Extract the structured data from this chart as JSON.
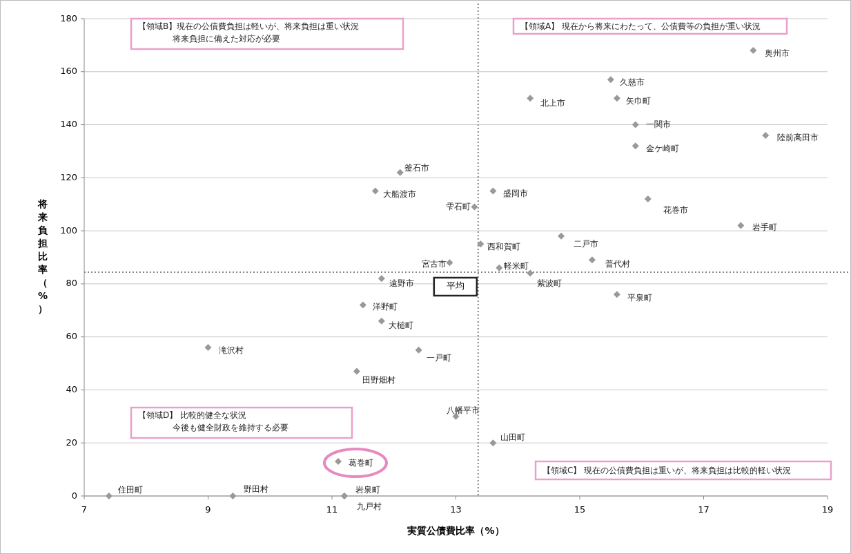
{
  "chart_data": {
    "type": "scatter",
    "xlabel": "実質公債費比率（%）",
    "ylabel": "将来負担比率（%）",
    "xlim": [
      7,
      19
    ],
    "xticks": [
      7,
      9,
      11,
      13,
      15,
      17,
      19
    ],
    "ylim": [
      0,
      180
    ],
    "yticks": [
      0,
      20,
      40,
      60,
      80,
      100,
      120,
      140,
      160,
      180
    ],
    "grid": "y",
    "marker": "diamond",
    "series": [
      {
        "name": "奥州市",
        "color": "#999999",
        "x": [
          17.8
        ],
        "values": [
          168
        ]
      },
      {
        "name": "久慈市",
        "color": "#999999",
        "x": [
          15.5
        ],
        "values": [
          157
        ]
      },
      {
        "name": "矢巾町",
        "color": "#999999",
        "x": [
          15.6
        ],
        "values": [
          150
        ]
      },
      {
        "name": "北上市",
        "color": "#999999",
        "x": [
          14.2
        ],
        "values": [
          150
        ]
      },
      {
        "name": "一関市",
        "color": "#999999",
        "x": [
          15.9
        ],
        "values": [
          140
        ]
      },
      {
        "name": "陸前高田市",
        "color": "#999999",
        "x": [
          18
        ],
        "values": [
          136
        ]
      },
      {
        "name": "金ケ崎町",
        "color": "#999999",
        "x": [
          15.9
        ],
        "values": [
          132
        ]
      },
      {
        "name": "釜石市",
        "color": "#999999",
        "x": [
          12.1
        ],
        "values": [
          122
        ]
      },
      {
        "name": "大船渡市",
        "color": "#999999",
        "x": [
          11.7
        ],
        "values": [
          115
        ]
      },
      {
        "name": "盛岡市",
        "color": "#999999",
        "x": [
          13.6
        ],
        "values": [
          115
        ]
      },
      {
        "name": "雫石町",
        "color": "#999999",
        "x": [
          13.3
        ],
        "values": [
          109
        ]
      },
      {
        "name": "花巻市",
        "color": "#999999",
        "x": [
          16.1
        ],
        "values": [
          112
        ]
      },
      {
        "name": "岩手町",
        "color": "#999999",
        "x": [
          17.6
        ],
        "values": [
          102
        ]
      },
      {
        "name": "二戸市",
        "color": "#999999",
        "x": [
          14.7
        ],
        "values": [
          98
        ]
      },
      {
        "name": "西和賀町",
        "color": "#999999",
        "x": [
          13.4
        ],
        "values": [
          95
        ]
      },
      {
        "name": "宮古市",
        "color": "#999999",
        "x": [
          12.9
        ],
        "values": [
          88
        ]
      },
      {
        "name": "普代村",
        "color": "#999999",
        "x": [
          15.2
        ],
        "values": [
          89
        ]
      },
      {
        "name": "軽米町",
        "color": "#999999",
        "x": [
          13.7
        ],
        "values": [
          86
        ]
      },
      {
        "name": "紫波町",
        "color": "#999999",
        "x": [
          14.2
        ],
        "values": [
          84
        ]
      },
      {
        "name": "遠野市",
        "color": "#999999",
        "x": [
          11.8
        ],
        "values": [
          82
        ]
      },
      {
        "name": "平泉町",
        "color": "#999999",
        "x": [
          15.6
        ],
        "values": [
          76
        ]
      },
      {
        "name": "洋野町",
        "color": "#999999",
        "x": [
          11.5
        ],
        "values": [
          72
        ]
      },
      {
        "name": "大槌町",
        "color": "#999999",
        "x": [
          11.8
        ],
        "values": [
          66
        ]
      },
      {
        "name": "滝沢村",
        "color": "#999999",
        "x": [
          9
        ],
        "values": [
          56
        ]
      },
      {
        "name": "一戸町",
        "color": "#999999",
        "x": [
          12.4
        ],
        "values": [
          55
        ]
      },
      {
        "name": "田野畑村",
        "color": "#999999",
        "x": [
          11.4
        ],
        "values": [
          47
        ]
      },
      {
        "name": "八幡平市",
        "color": "#999999",
        "x": [
          13
        ],
        "values": [
          30
        ]
      },
      {
        "name": "山田町",
        "color": "#999999",
        "x": [
          13.6
        ],
        "values": [
          20
        ]
      },
      {
        "name": "葛巻町",
        "color": "#999999",
        "x": [
          11.1
        ],
        "values": [
          13
        ]
      },
      {
        "name": "住田町",
        "color": "#999999",
        "x": [
          7.4
        ],
        "values": [
          0
        ]
      },
      {
        "name": "野田村",
        "color": "#999999",
        "x": [
          9.4
        ],
        "values": [
          0
        ]
      },
      {
        "name": "岩泉町",
        "color": "#999999",
        "x": [
          11.2
        ],
        "values": [
          0
        ]
      },
      {
        "name": "九戸村",
        "color": "#999999",
        "x": [
          11.2
        ],
        "values": [
          0
        ]
      }
    ],
    "ref_lines": [
      {
        "axis": "x",
        "value": 13.36,
        "label": "平均",
        "color": "#888888",
        "line_style": "dotted"
      },
      {
        "axis": "y",
        "value": 84.4,
        "color": "#888888",
        "line_style": "dotted"
      }
    ],
    "annotations": [
      "【領域B】現在の公債費負担は軽いが、将来負担は重い状況",
      "将来負担に備えた対応が必要",
      "【領域A】 現在から将来にわたって、公債費等の負担が重い状況",
      "【領域D】 比較的健全な状況",
      "今後も健全財政を維持する必要",
      "【領域C】 現在の公債費負担は重いが、将来負担は比較的軽い状況"
    ]
  }
}
